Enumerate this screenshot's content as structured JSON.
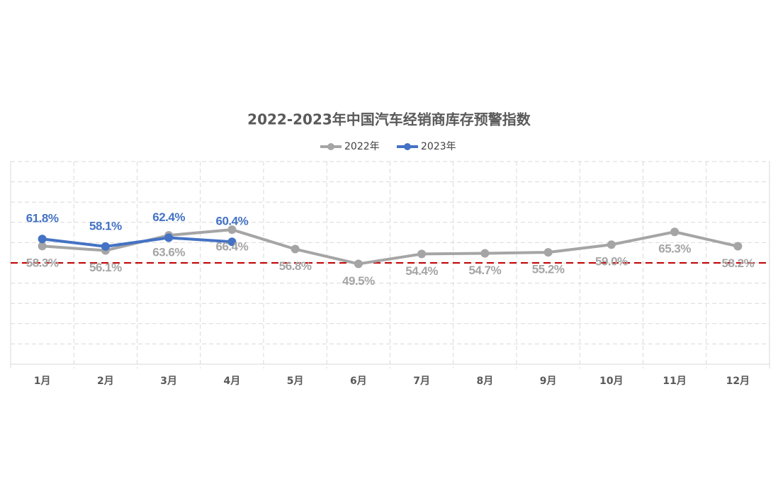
{
  "chart_data": {
    "type": "line",
    "title": "2022-2023年中国汽车经销商库存预警指数",
    "categories": [
      "1月",
      "2月",
      "3月",
      "4月",
      "5月",
      "6月",
      "7月",
      "8月",
      "9月",
      "10月",
      "11月",
      "12月"
    ],
    "series": [
      {
        "name": "2022年",
        "color": "#a5a5a5",
        "values": [
          58.3,
          56.1,
          63.6,
          66.4,
          56.8,
          49.5,
          54.4,
          54.7,
          55.2,
          59.0,
          65.3,
          58.2
        ],
        "value_labels": [
          "58.3%",
          "56.1%",
          "63.6%",
          "66.4%",
          "56.8%",
          "49.5%",
          "54.4%",
          "54.7%",
          "55.2%",
          "59.0%",
          "65.3%",
          "58.2%"
        ]
      },
      {
        "name": "2023年",
        "color": "#4472c4",
        "values": [
          61.8,
          58.1,
          62.4,
          60.4,
          null,
          null,
          null,
          null,
          null,
          null,
          null,
          null
        ],
        "value_labels": [
          "61.8%",
          "58.1%",
          "62.4%",
          "60.4%",
          null,
          null,
          null,
          null,
          null,
          null,
          null,
          null
        ]
      }
    ],
    "ylim": [
      0,
      100
    ],
    "yticks": [
      0,
      10,
      20,
      30,
      40,
      50,
      60,
      70,
      80,
      90,
      100
    ],
    "grid": true,
    "reference_line": {
      "value": 50,
      "color": "#c00000"
    },
    "legend": "top"
  }
}
